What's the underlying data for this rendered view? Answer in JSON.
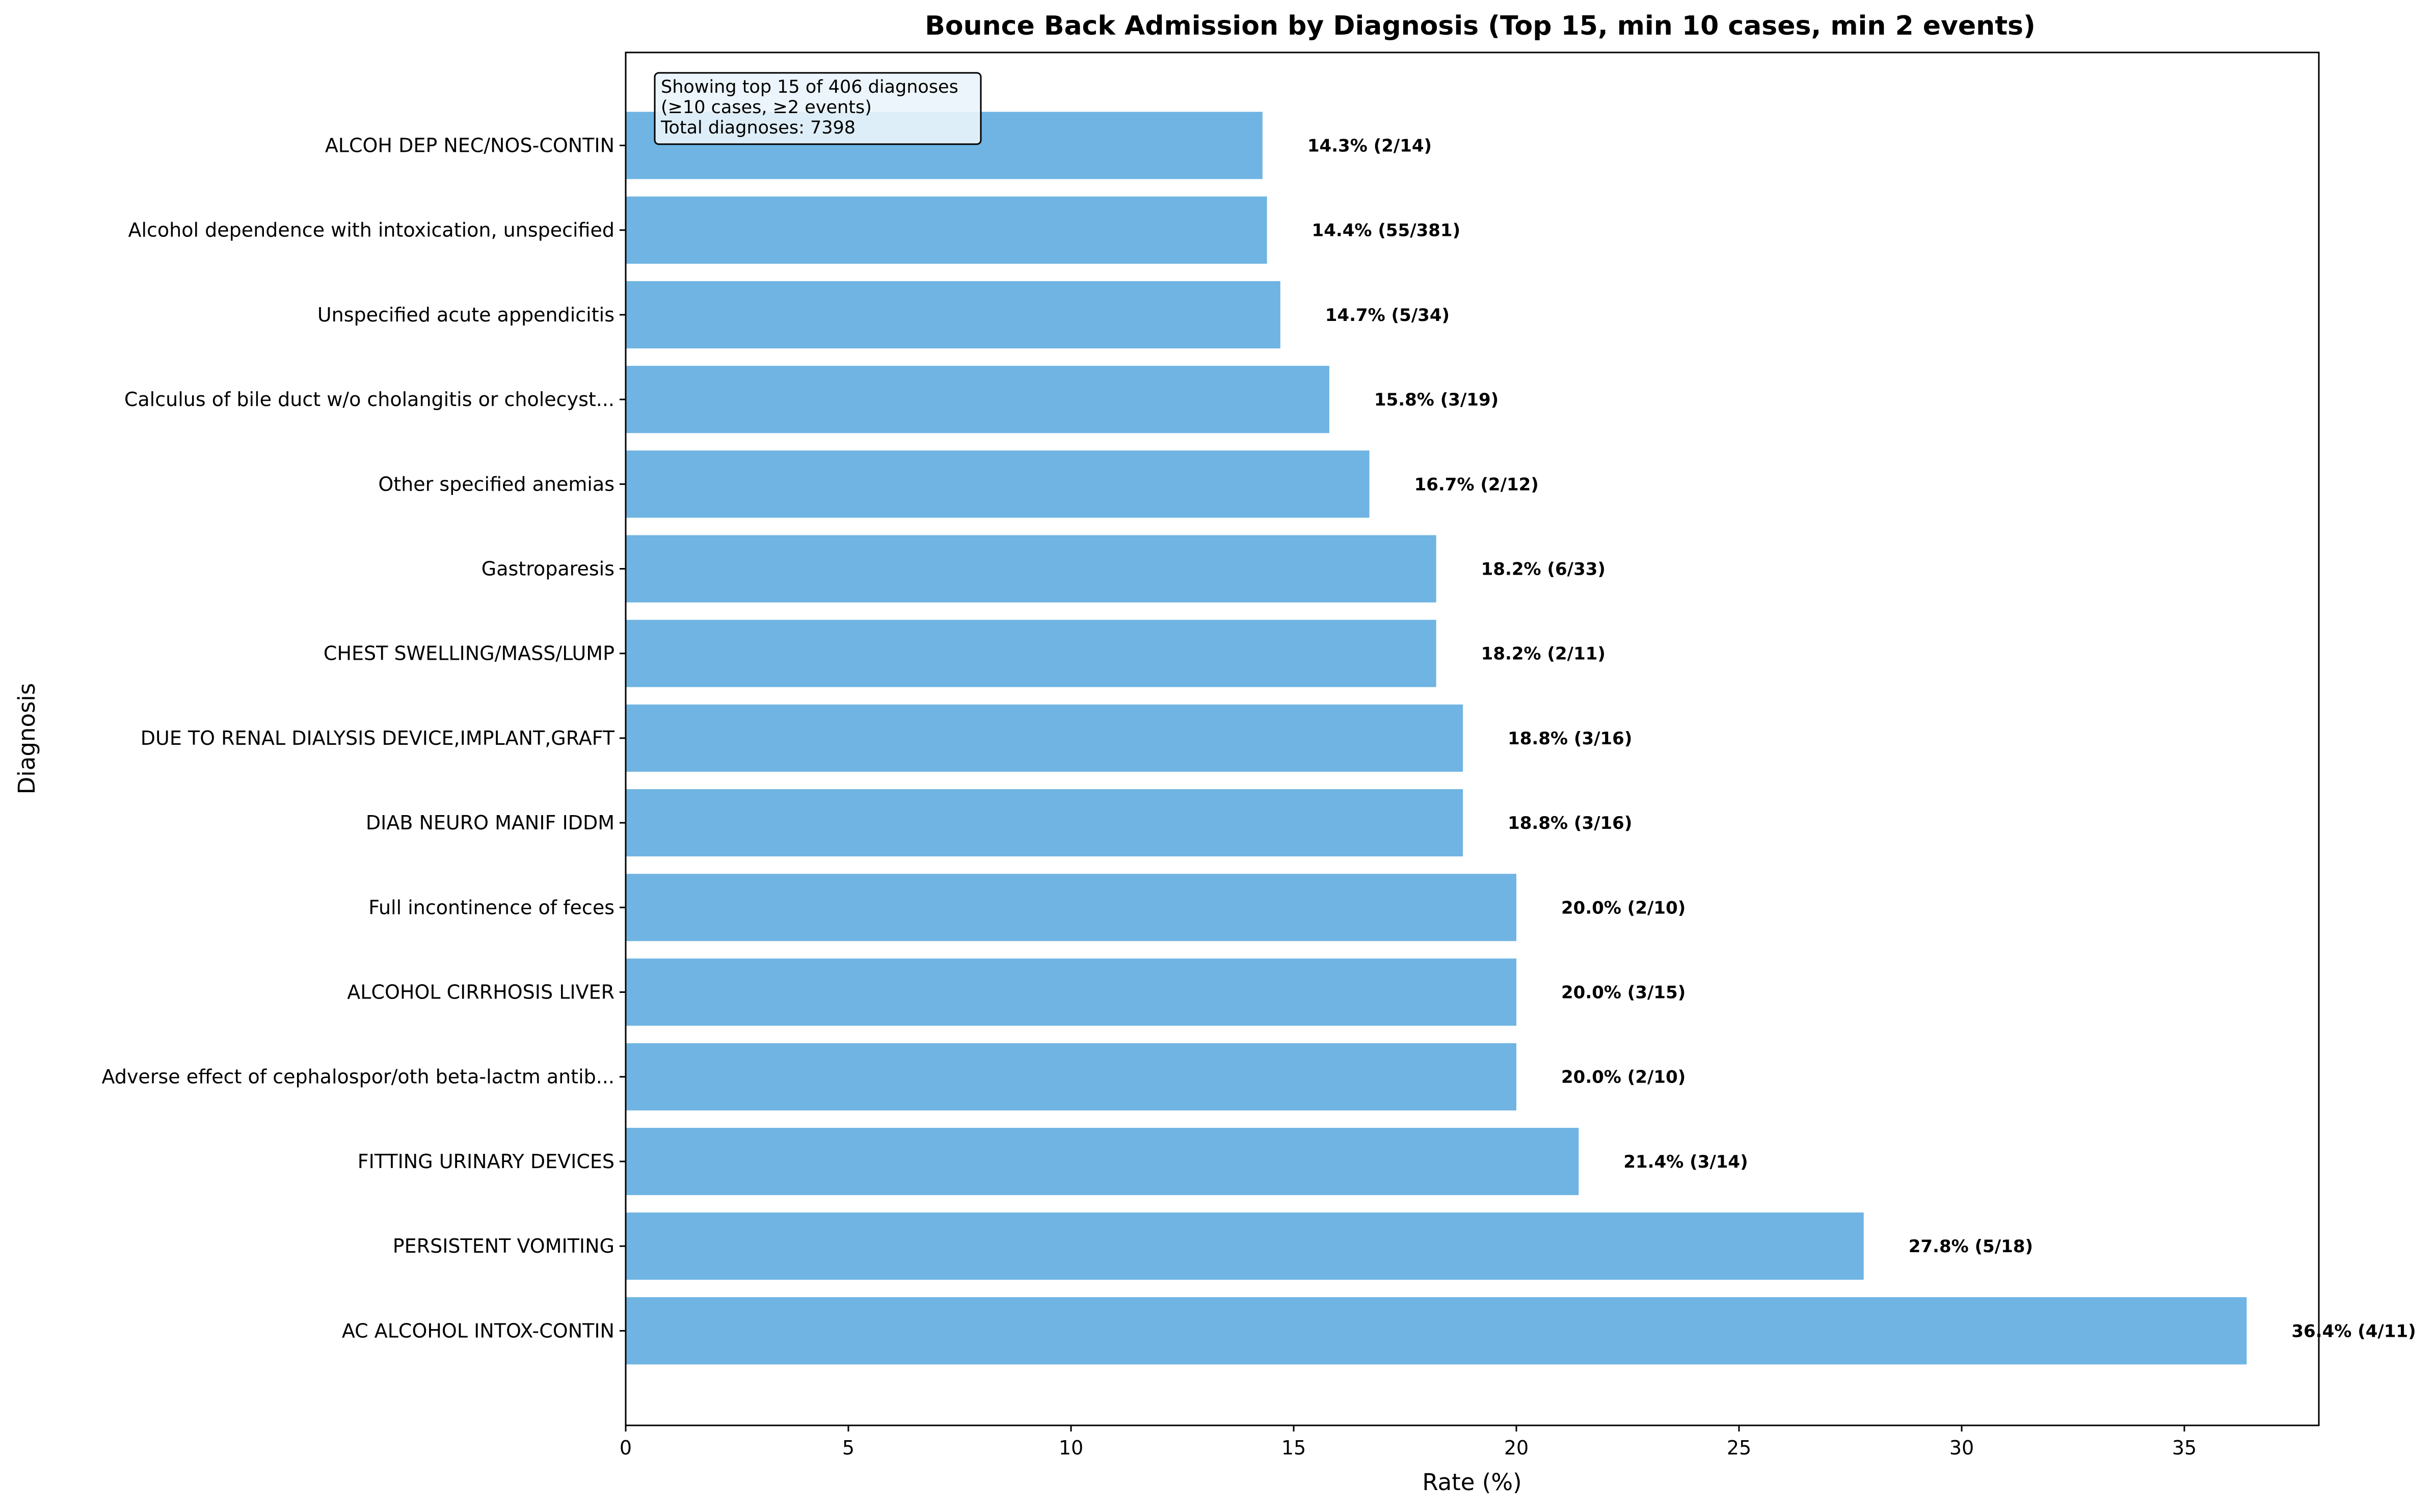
{
  "chart_data": {
    "type": "bar",
    "orientation": "horizontal",
    "title": "Bounce Back Admission by Diagnosis (Top 15, min 10 cases, min 2 events)",
    "xlabel": "Rate (%)",
    "ylabel": "Diagnosis",
    "xlim": [
      0,
      38
    ],
    "xticks": [
      0,
      5,
      10,
      15,
      20,
      25,
      30,
      35
    ],
    "grid": false,
    "bar_color": "#6FB4E2",
    "categories": [
      "ALCOH DEP NEC/NOS-CONTIN",
      "Alcohol dependence with intoxication, unspecified",
      "Unspecified acute appendicitis",
      "Calculus of bile duct w/o cholangitis or cholecyst...",
      "Other specified anemias",
      "Gastroparesis",
      "CHEST SWELLING/MASS/LUMP",
      "DUE TO RENAL DIALYSIS DEVICE,IMPLANT,GRAFT",
      "DIAB NEURO MANIF IDDM",
      "Full incontinence of feces",
      "ALCOHOL CIRRHOSIS LIVER",
      "Adverse effect of cephalospor/oth beta-lactm antib...",
      "FITTING URINARY DEVICES",
      "PERSISTENT VOMITING",
      "AC ALCOHOL INTOX-CONTIN"
    ],
    "values": [
      14.3,
      14.4,
      14.7,
      15.8,
      16.7,
      18.2,
      18.2,
      18.8,
      18.8,
      20.0,
      20.0,
      20.0,
      21.4,
      27.8,
      36.4
    ],
    "data_labels": [
      "14.3% (2/14)",
      "14.4% (55/381)",
      "14.7% (5/34)",
      "15.8% (3/19)",
      "16.7% (2/12)",
      "18.2% (6/33)",
      "18.2% (2/11)",
      "18.8% (3/16)",
      "18.8% (3/16)",
      "20.0% (2/10)",
      "20.0% (3/15)",
      "20.0% (2/10)",
      "21.4% (3/14)",
      "27.8% (5/18)",
      "36.4% (4/11)"
    ],
    "annotation": [
      "Showing top 15 of 406 diagnoses",
      "(≥10 cases, ≥2 events)",
      "Total diagnoses: 7398"
    ],
    "annotation_placement": "top-left"
  }
}
